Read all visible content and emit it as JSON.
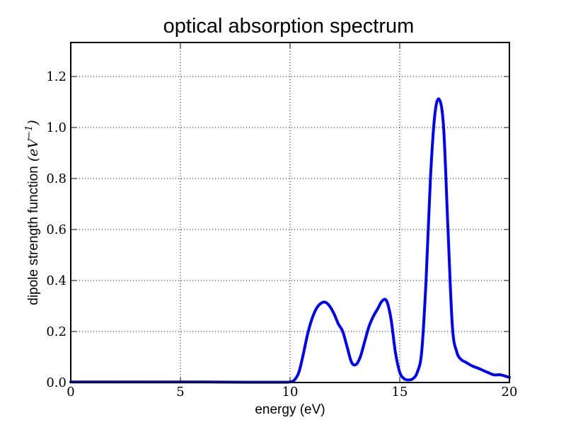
{
  "chart_data": {
    "type": "line",
    "title": "optical absorption spectrum",
    "xlabel": "energy (eV)",
    "ylabel": "dipole strength function",
    "ylabel_unit_base": "eV",
    "ylabel_unit_exp": "−1",
    "xlim": [
      0,
      20
    ],
    "ylim": [
      0,
      1.3333
    ],
    "grid": true,
    "x_ticks": [
      {
        "value": 0,
        "label": "0"
      },
      {
        "value": 5,
        "label": "5"
      },
      {
        "value": 10,
        "label": "10"
      },
      {
        "value": 15,
        "label": "15"
      },
      {
        "value": 20,
        "label": "20"
      }
    ],
    "y_ticks": [
      {
        "value": 0.0,
        "label": "0.0"
      },
      {
        "value": 0.2,
        "label": "0.2"
      },
      {
        "value": 0.4,
        "label": "0.4"
      },
      {
        "value": 0.6,
        "label": "0.6"
      },
      {
        "value": 0.8,
        "label": "0.8"
      },
      {
        "value": 1.0,
        "label": "1.0"
      },
      {
        "value": 1.2,
        "label": "1.2"
      }
    ],
    "series": [
      {
        "color": "#0000ff",
        "x": [
          0,
          2,
          4,
          6,
          8,
          9.5,
          10.0,
          10.2,
          10.4,
          10.6,
          10.8,
          11.0,
          11.2,
          11.4,
          11.6,
          11.8,
          12.0,
          12.2,
          12.4,
          12.6,
          12.8,
          13.0,
          13.2,
          13.4,
          13.6,
          13.8,
          14.0,
          14.2,
          14.4,
          14.6,
          14.8,
          15.0,
          15.2,
          15.4,
          15.6,
          15.8,
          16.0,
          16.2,
          16.4,
          16.6,
          16.8,
          17.0,
          17.2,
          17.4,
          17.6,
          17.8,
          18.0,
          18.3,
          18.6,
          19.0,
          19.3,
          19.6,
          20.0
        ],
        "y": [
          0.002,
          0.002,
          0.002,
          0.002,
          0.001,
          0.001,
          0.002,
          0.01,
          0.04,
          0.11,
          0.19,
          0.25,
          0.29,
          0.31,
          0.315,
          0.3,
          0.27,
          0.23,
          0.2,
          0.14,
          0.08,
          0.07,
          0.1,
          0.16,
          0.22,
          0.26,
          0.29,
          0.32,
          0.32,
          0.25,
          0.12,
          0.04,
          0.015,
          0.01,
          0.015,
          0.04,
          0.12,
          0.4,
          0.8,
          1.05,
          1.11,
          1.0,
          0.6,
          0.22,
          0.12,
          0.09,
          0.08,
          0.065,
          0.055,
          0.04,
          0.03,
          0.03,
          0.02
        ]
      }
    ]
  }
}
